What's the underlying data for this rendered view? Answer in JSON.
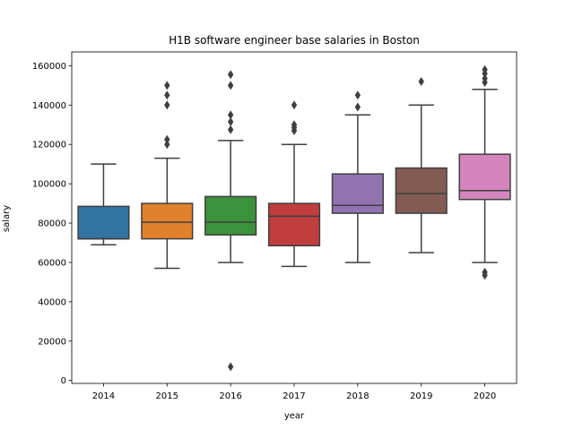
{
  "chart_data": {
    "type": "box",
    "title": "H1B software engineer base salaries in Boston",
    "xlabel": "year",
    "ylabel": "salary",
    "ylim": [
      -1500,
      167000
    ],
    "yticks": [
      0,
      20000,
      40000,
      60000,
      80000,
      100000,
      120000,
      140000,
      160000
    ],
    "ytick_labels": [
      "0",
      "20000",
      "40000",
      "60000",
      "80000",
      "100000",
      "120000",
      "140000",
      "160000"
    ],
    "grid": false,
    "legend": "none",
    "categories": [
      "2014",
      "2015",
      "2016",
      "2017",
      "2018",
      "2019",
      "2020"
    ],
    "boxes": [
      {
        "category": "2014",
        "color": "#3274a1",
        "whisker_low": 69000,
        "q1": 72000,
        "median": 72000,
        "q3": 88500,
        "whisker_high": 110000,
        "outliers": []
      },
      {
        "category": "2015",
        "color": "#e1812c",
        "whisker_low": 57000,
        "q1": 72000,
        "median": 80500,
        "q3": 90000,
        "whisker_high": 113000,
        "outliers": [
          120000,
          122500,
          140000,
          145000,
          150000
        ]
      },
      {
        "category": "2016",
        "color": "#3a923a",
        "whisker_low": 60000,
        "q1": 74000,
        "median": 80500,
        "q3": 93500,
        "whisker_high": 122000,
        "outliers": [
          7000,
          127500,
          131500,
          135000,
          150000,
          155500
        ]
      },
      {
        "category": "2017",
        "color": "#c03d3e",
        "whisker_low": 58000,
        "q1": 68500,
        "median": 83500,
        "q3": 90000,
        "whisker_high": 120000,
        "outliers": [
          127000,
          128500,
          130000,
          140000
        ]
      },
      {
        "category": "2018",
        "color": "#9372b2",
        "whisker_low": 60000,
        "q1": 85000,
        "median": 89000,
        "q3": 105000,
        "whisker_high": 135000,
        "outliers": [
          139000,
          145000
        ]
      },
      {
        "category": "2019",
        "color": "#845b53",
        "whisker_low": 65000,
        "q1": 85000,
        "median": 95000,
        "q3": 108000,
        "whisker_high": 140000,
        "outliers": [
          152000
        ]
      },
      {
        "category": "2020",
        "color": "#d684bd",
        "whisker_low": 60000,
        "q1": 92000,
        "median": 96500,
        "q3": 115000,
        "whisker_high": 148000,
        "outliers": [
          53500,
          55000,
          151500,
          153500,
          156000,
          158000
        ]
      }
    ]
  }
}
